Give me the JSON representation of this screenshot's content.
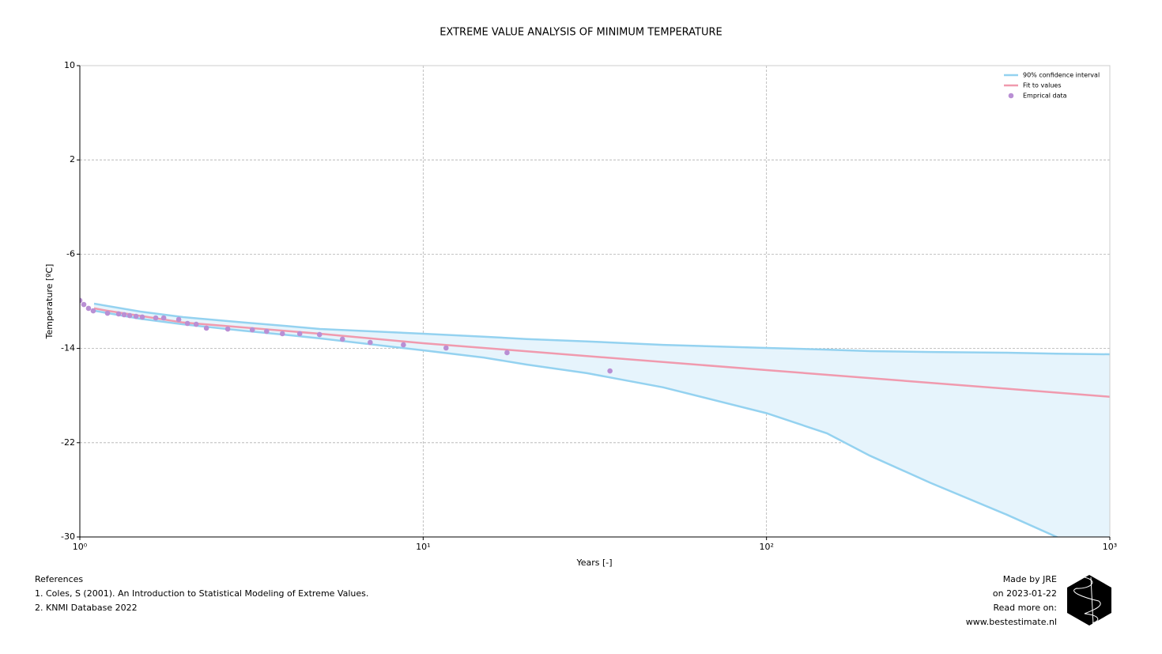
{
  "chart_data": {
    "type": "line",
    "title": "EXTREME VALUE ANALYSIS OF MINIMUM TEMPERATURE",
    "x_label": "Years [-]",
    "y_label": "Temperature [ºC]",
    "x_scale": "log",
    "grid": true,
    "legend": "upper-right",
    "xlim": [
      1,
      1000
    ],
    "ylim": [
      -30,
      10
    ],
    "xticks": [
      {
        "value": 1,
        "label": "10⁰"
      },
      {
        "value": 10,
        "label": "10¹"
      },
      {
        "value": 100,
        "label": "10²"
      },
      {
        "value": 1000,
        "label": "10³"
      }
    ],
    "yticks": [
      10,
      2,
      -6,
      -14,
      -22,
      -30
    ],
    "series": [
      {
        "name": "90% confidence interval",
        "type": "band",
        "color": "#94d2f0",
        "fill": "#e6f4fc",
        "x": [
          1.1,
          1.5,
          2,
          3,
          4,
          5,
          10,
          15,
          20,
          30,
          50,
          100,
          150,
          200,
          300,
          500,
          700,
          1000
        ],
        "values": [
          -10.2,
          -10.87,
          -11.34,
          -11.8,
          -12.1,
          -12.35,
          -12.75,
          -13.0,
          -13.2,
          -13.4,
          -13.7,
          -13.96,
          -14.1,
          -14.23,
          -14.3,
          -14.36,
          -14.45,
          -14.5
        ],
        "lower": [
          -10.8,
          -11.48,
          -11.95,
          -12.5,
          -12.85,
          -13.15,
          -14.16,
          -14.77,
          -15.37,
          -16.1,
          -17.3,
          -19.5,
          -21.2,
          -23.1,
          -25.4,
          -28.1,
          -30,
          -32.5
        ]
      },
      {
        "name": "Fit to values",
        "type": "line",
        "color": "#f09aae",
        "x": [
          1.1,
          1.2,
          2,
          5,
          10,
          100,
          1000
        ],
        "values": [
          -10.6,
          -10.8,
          -11.8,
          -12.75,
          -13.56,
          -15.84,
          -18.1
        ]
      },
      {
        "name": "Emprical data",
        "type": "scatter",
        "color": "#b98fd4",
        "x": [
          1.0,
          1.027,
          1.06,
          1.094,
          1.204,
          1.297,
          1.346,
          1.397,
          1.458,
          1.52,
          1.664,
          1.755,
          1.941,
          2.058,
          2.182,
          2.337,
          2.697,
          3.18,
          3.5,
          3.89,
          4.37,
          4.99,
          5.82,
          7.01,
          8.76,
          11.66,
          17.55,
          35.0
        ],
        "values": [
          -9.93,
          -10.27,
          -10.6,
          -10.81,
          -11.01,
          -11.07,
          -11.14,
          -11.21,
          -11.28,
          -11.34,
          -11.41,
          -11.41,
          -11.54,
          -11.88,
          -11.95,
          -12.28,
          -12.35,
          -12.42,
          -12.55,
          -12.75,
          -12.75,
          -12.82,
          -13.22,
          -13.49,
          -13.69,
          -13.96,
          -14.36,
          -15.91
        ]
      }
    ]
  },
  "footer": {
    "references": [
      "References",
      "1. Coles, S (2001). An Introduction to Statistical Modeling of Extreme Values.",
      "2. KNMI Database 2022"
    ],
    "credits": [
      "Made by JRE",
      "on 2023-01-22",
      "Read more on:",
      "www.bestestimate.nl"
    ]
  }
}
